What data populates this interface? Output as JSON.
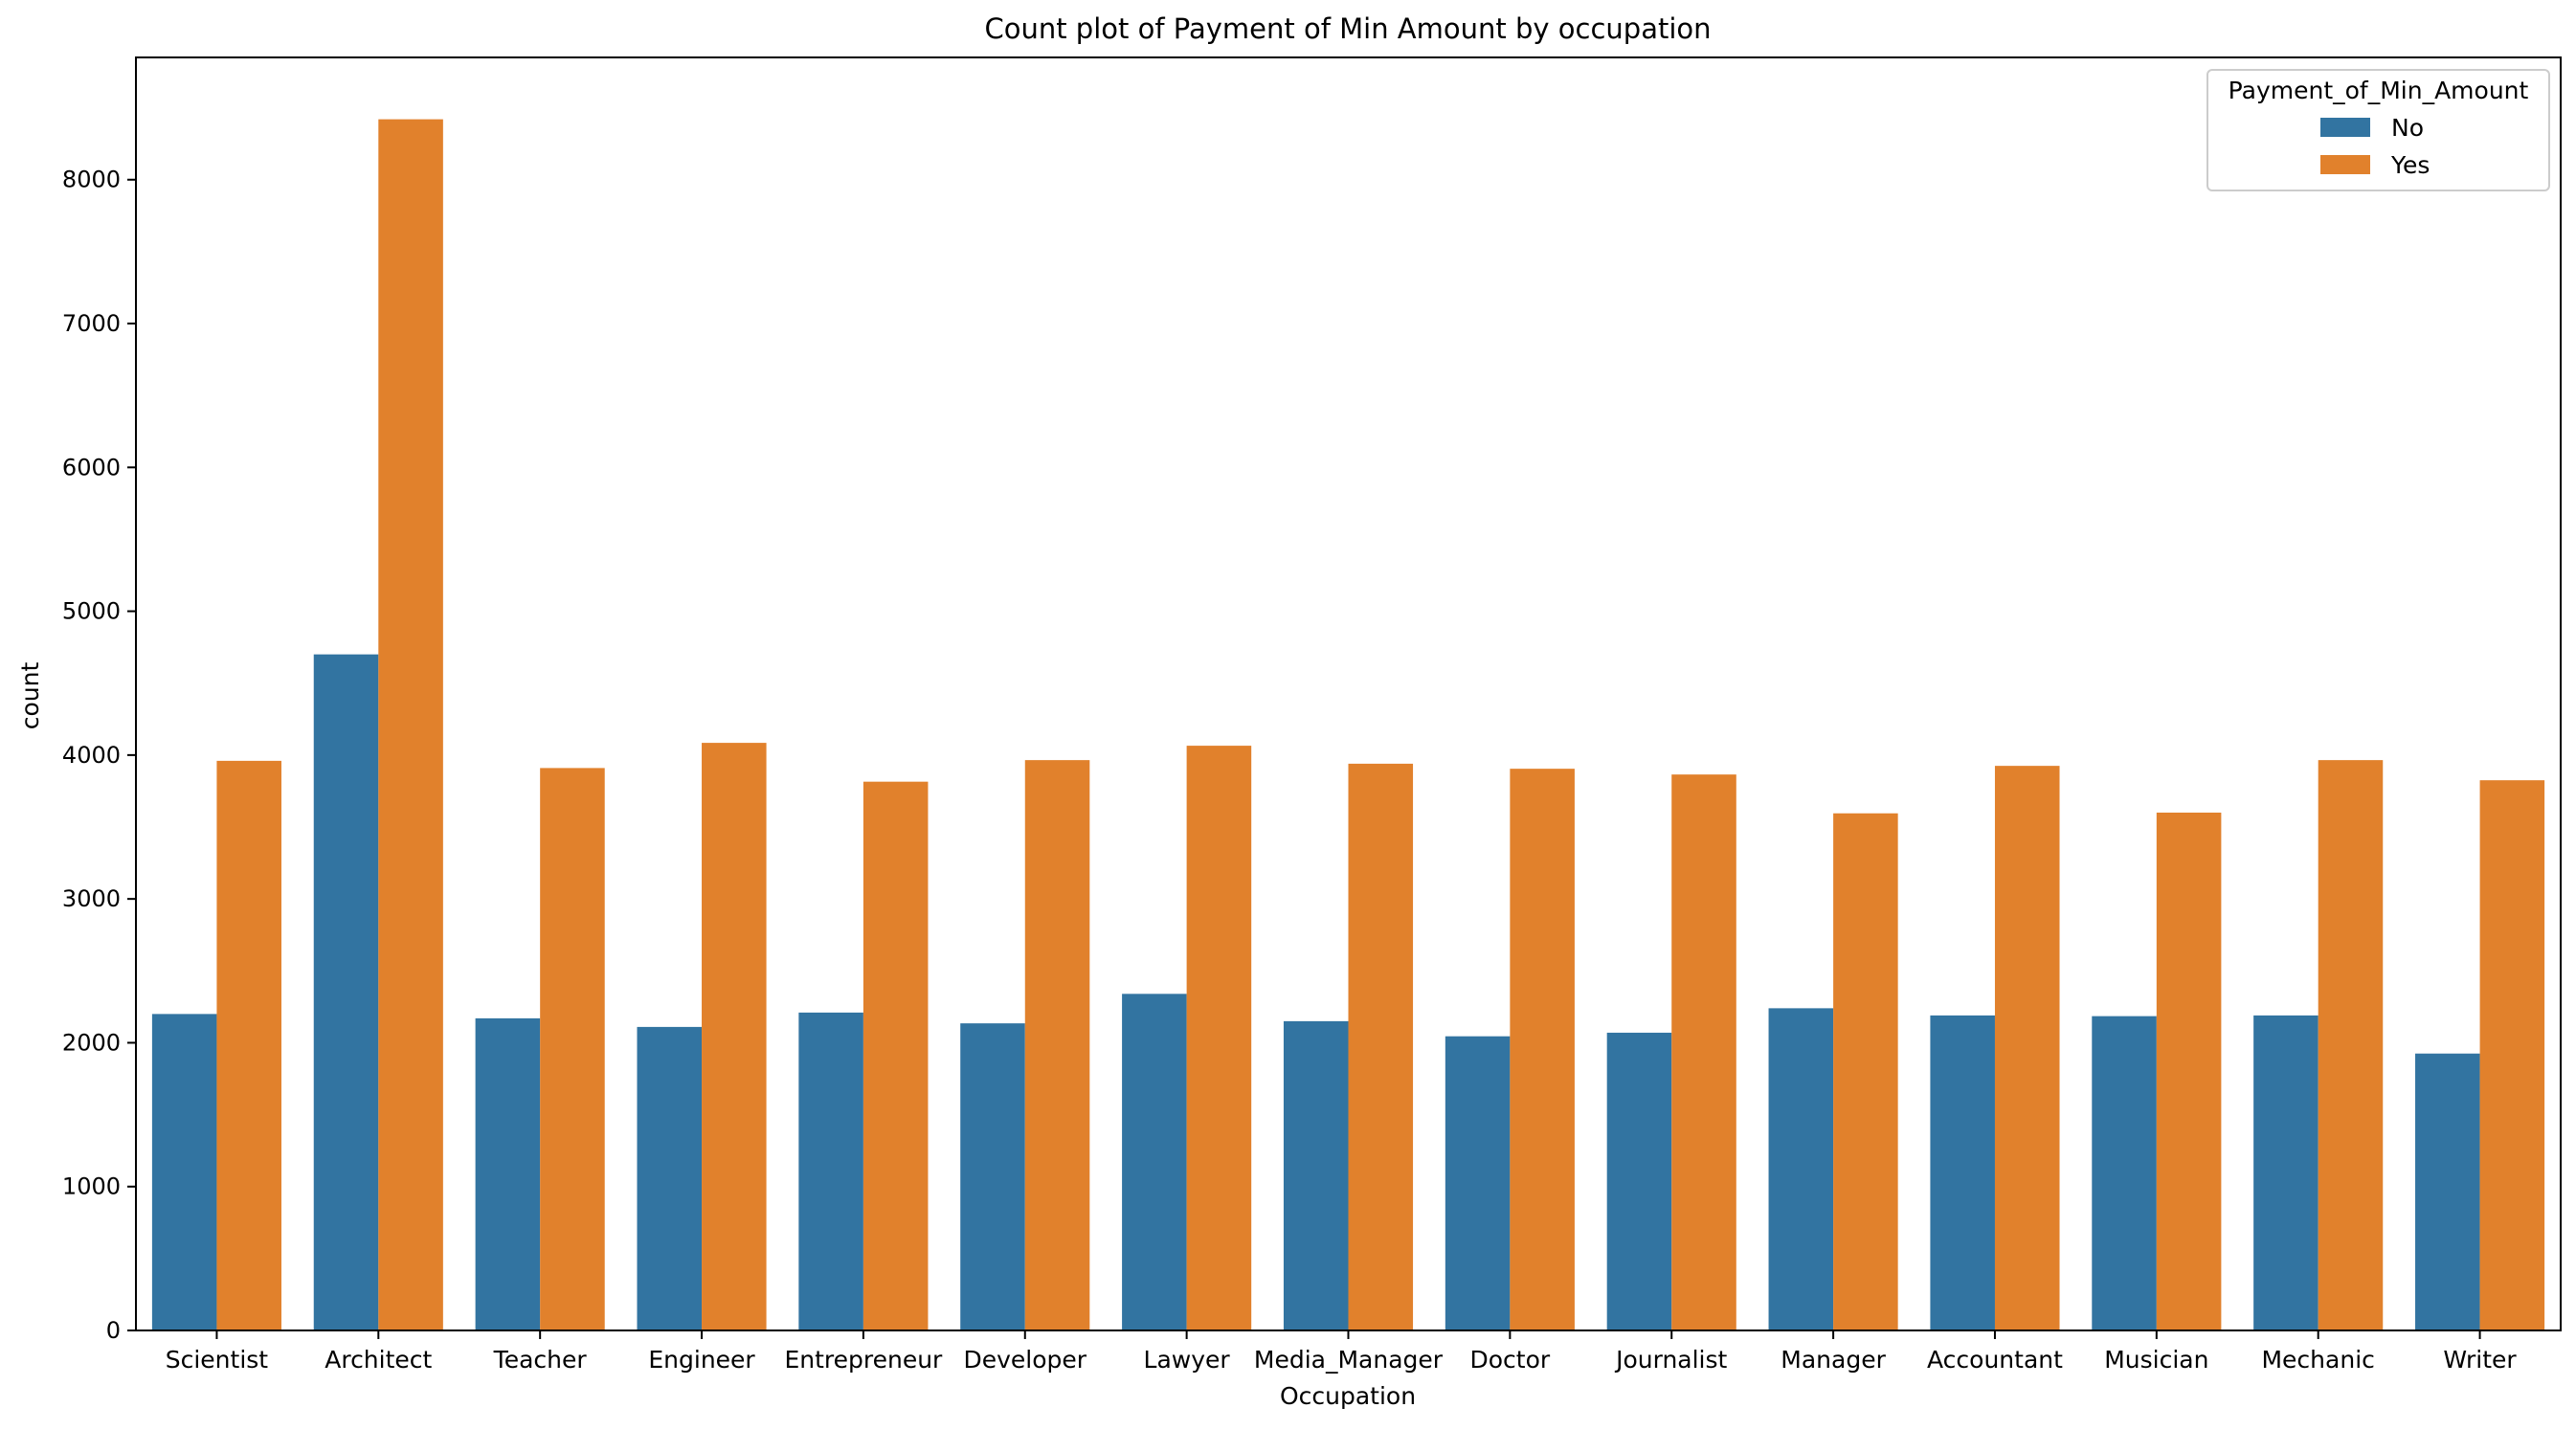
{
  "chart_data": {
    "type": "bar",
    "title": "Count plot of Payment of Min Amount by occupation",
    "xlabel": "Occupation",
    "ylabel": "count",
    "ylim": [
      0,
      8850
    ],
    "yticks": [
      0,
      1000,
      2000,
      3000,
      4000,
      5000,
      6000,
      7000,
      8000
    ],
    "ytick_labels": [
      "0",
      "1000",
      "2000",
      "3000",
      "4000",
      "5000",
      "6000",
      "7000",
      "8000"
    ],
    "grid": false,
    "categories": [
      "Scientist",
      "Architect",
      "Teacher",
      "Engineer",
      "Entrepreneur",
      "Developer",
      "Lawyer",
      "Media_Manager",
      "Doctor",
      "Journalist",
      "Manager",
      "Accountant",
      "Musician",
      "Mechanic",
      "Writer"
    ],
    "legend": {
      "title": "Payment_of_Min_Amount",
      "placement": "top-right"
    },
    "series": [
      {
        "name": "No",
        "color": "#3274a1",
        "values": [
          2200,
          4700,
          2170,
          2110,
          2210,
          2135,
          2340,
          2150,
          2045,
          2070,
          2240,
          2190,
          2185,
          2190,
          1925
        ]
      },
      {
        "name": "Yes",
        "color": "#e1812c",
        "values": [
          3960,
          8420,
          3910,
          4085,
          3815,
          3965,
          4065,
          3940,
          3905,
          3865,
          3595,
          3925,
          3600,
          3965,
          3825
        ]
      }
    ]
  }
}
